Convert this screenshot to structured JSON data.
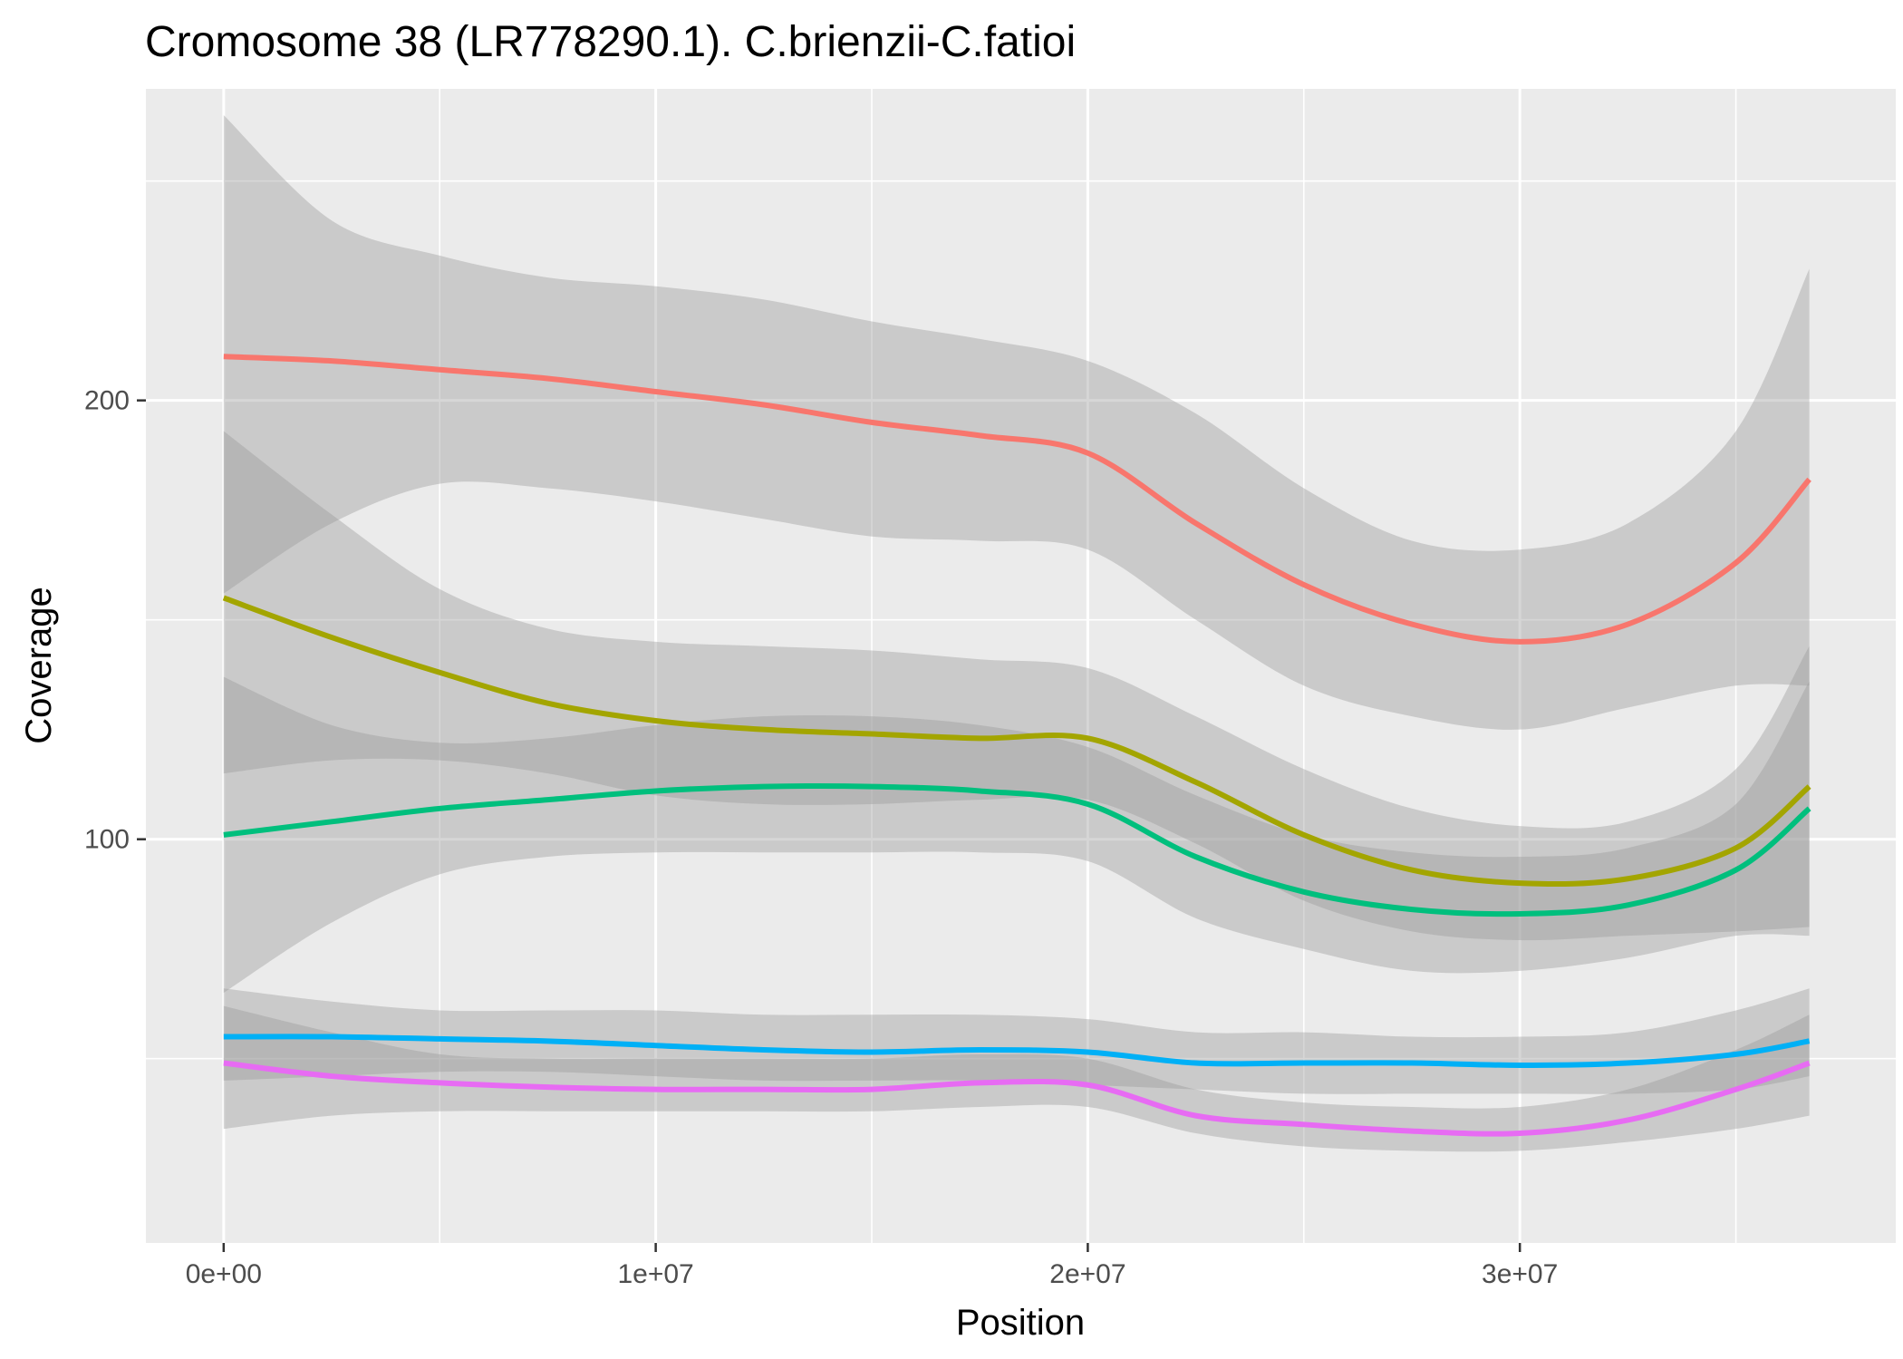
{
  "chart_data": {
    "type": "line",
    "title": "Cromosome 38 (LR778290.1). C.brienzii-C.fatioi",
    "xlabel": "Position",
    "ylabel": "Coverage",
    "xlim": [
      -1800000,
      38700000
    ],
    "ylim": [
      8,
      271
    ],
    "x_ticks": [
      {
        "value": 0,
        "label": "0e+00"
      },
      {
        "value": 10000000,
        "label": "1e+07"
      },
      {
        "value": 20000000,
        "label": "2e+07"
      },
      {
        "value": 30000000,
        "label": "3e+07"
      }
    ],
    "y_ticks": [
      {
        "value": 100,
        "label": "100"
      },
      {
        "value": 200,
        "label": "200"
      }
    ],
    "x_minor_grid": [
      5000000,
      15000000,
      25000000,
      35000000
    ],
    "y_minor_grid": [
      50,
      150,
      250
    ],
    "grid": true,
    "legend": "none",
    "panel_color": "#ebebeb",
    "ribbon_color": "#999999",
    "series": [
      {
        "color": "#f8766d",
        "x": [
          0,
          2500000,
          5000000,
          7500000,
          10000000,
          12500000,
          15000000,
          17500000,
          20000000,
          22500000,
          25000000,
          27500000,
          30000000,
          32500000,
          35000000,
          36700000
        ],
        "y": [
          210,
          209,
          207,
          205,
          202,
          199,
          195,
          192,
          188,
          172,
          158,
          149,
          145,
          149,
          163,
          182
        ],
        "lower": [
          156,
          172,
          181,
          180,
          177,
          173,
          169,
          168,
          166,
          150,
          135,
          128,
          125,
          130,
          135,
          135
        ],
        "upper": [
          265,
          241,
          233,
          228,
          226,
          223,
          218,
          214,
          209,
          197,
          180,
          168,
          166,
          172,
          193,
          230
        ]
      },
      {
        "color": "#a3a500",
        "x": [
          0,
          2500000,
          5000000,
          7500000,
          10000000,
          12500000,
          15000000,
          17500000,
          20000000,
          22500000,
          25000000,
          27500000,
          30000000,
          32500000,
          35000000,
          36700000
        ],
        "y": [
          155,
          146,
          138,
          131,
          127,
          125,
          124,
          123,
          123,
          113,
          101,
          93,
          90,
          91,
          98,
          112
        ],
        "lower": [
          115,
          118,
          118,
          115,
          110,
          108,
          108,
          109,
          109,
          99,
          86,
          79,
          77,
          78,
          79,
          80
        ],
        "upper": [
          193,
          174,
          157,
          148,
          145,
          144,
          143,
          141,
          139,
          128,
          116,
          107,
          103,
          104,
          116,
          144
        ]
      },
      {
        "color": "#00bf7d",
        "x": [
          0,
          2500000,
          5000000,
          7500000,
          10000000,
          12500000,
          15000000,
          17500000,
          20000000,
          22500000,
          25000000,
          27500000,
          30000000,
          32500000,
          35000000,
          36700000
        ],
        "y": [
          101,
          104,
          107,
          109,
          111,
          112,
          112,
          111,
          108,
          96,
          88,
          84,
          83,
          85,
          93,
          107
        ],
        "lower": [
          65,
          81,
          92,
          96,
          97,
          97,
          97,
          97,
          95,
          82,
          75,
          70,
          70,
          73,
          78,
          78
        ],
        "upper": [
          137,
          126,
          122,
          123,
          126,
          128,
          128,
          126,
          121,
          110,
          101,
          97,
          96,
          98,
          108,
          136
        ]
      },
      {
        "color": "#00b0f6",
        "x": [
          0,
          2500000,
          5000000,
          7500000,
          10000000,
          12500000,
          15000000,
          17500000,
          20000000,
          22500000,
          25000000,
          27500000,
          30000000,
          32500000,
          35000000,
          36700000
        ],
        "y": [
          55,
          55,
          54.5,
          54,
          53,
          52,
          51.5,
          52,
          51.5,
          49,
          49,
          49,
          48.5,
          49,
          51,
          54
        ],
        "lower": [
          45,
          46,
          47,
          47,
          46,
          45,
          45,
          45,
          44,
          43,
          42,
          42,
          42,
          42,
          43,
          46
        ],
        "upper": [
          66,
          63,
          61,
          61,
          61,
          60,
          60,
          60,
          59,
          56,
          56,
          55,
          55,
          56,
          61,
          66
        ]
      },
      {
        "color": "#e76bf3",
        "x": [
          0,
          2500000,
          5000000,
          7500000,
          10000000,
          12500000,
          15000000,
          17500000,
          20000000,
          22500000,
          25000000,
          27500000,
          30000000,
          32500000,
          35000000,
          36700000
        ],
        "y": [
          49,
          46,
          44.5,
          43.5,
          43,
          43,
          43,
          44.5,
          44,
          37,
          35,
          33.5,
          33,
          36,
          43,
          49
        ],
        "lower": [
          34,
          37,
          38,
          38,
          38,
          38,
          38,
          39,
          39,
          33,
          30,
          29,
          29,
          31,
          34,
          37
        ],
        "upper": [
          62,
          56,
          51,
          50,
          50,
          50,
          50,
          51,
          50,
          43,
          40,
          39,
          39,
          43,
          52,
          60
        ]
      }
    ]
  }
}
